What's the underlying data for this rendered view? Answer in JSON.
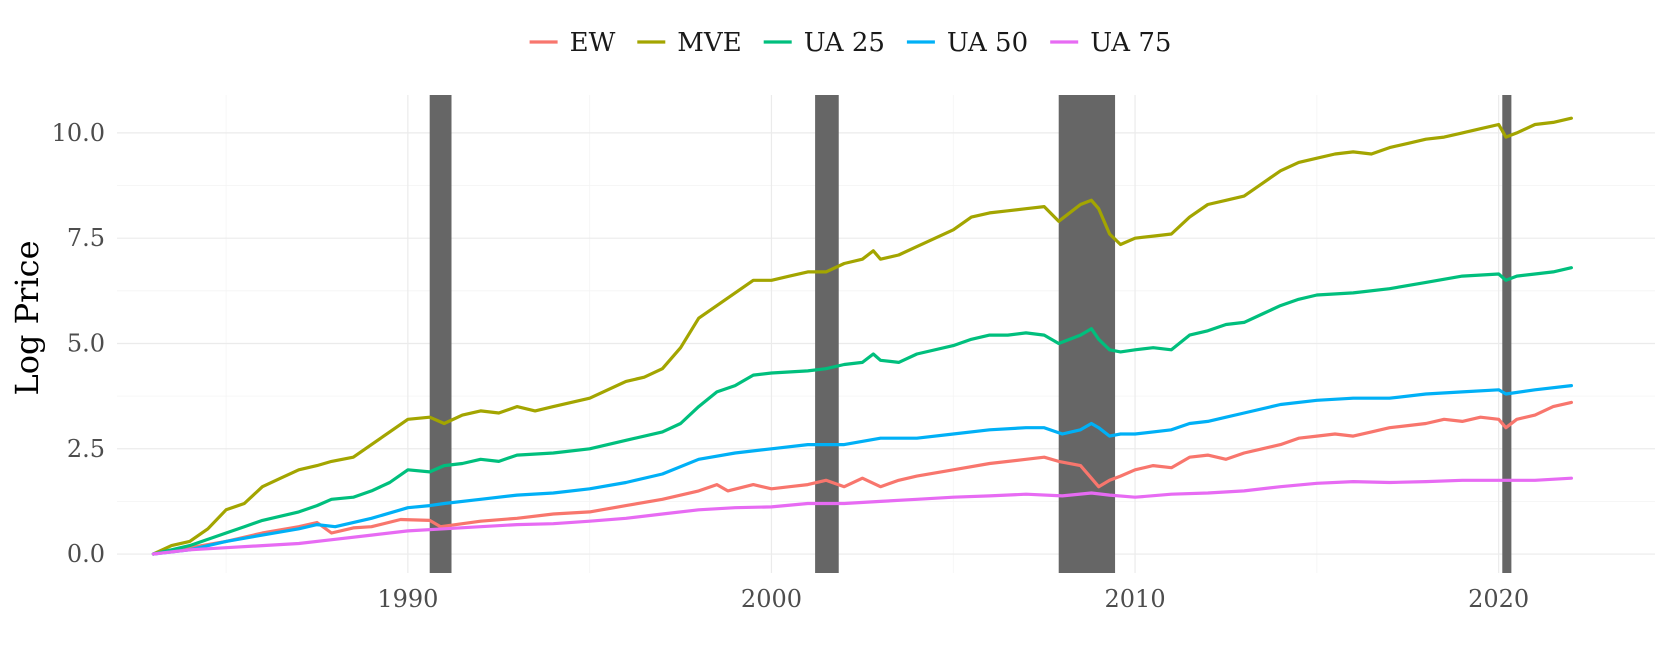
{
  "chart_data": {
    "type": "line",
    "title": "",
    "xlabel": "",
    "ylabel": "Log Price",
    "xlim": [
      1982.0,
      2024.3
    ],
    "ylim": [
      -0.45,
      10.9
    ],
    "x_ticks": [
      1990,
      2000,
      2010,
      2020
    ],
    "x_tick_labels": [
      "1990",
      "2000",
      "2010",
      "2020"
    ],
    "x_minor_ticks": [
      1985,
      1995,
      2005,
      2015
    ],
    "y_ticks": [
      0,
      2.5,
      5,
      7.5,
      10
    ],
    "y_tick_labels": [
      "0.0",
      "2.5",
      "5.0",
      "7.5",
      "10.0"
    ],
    "y_minor_ticks": [
      1.25,
      3.75,
      6.25,
      8.75
    ],
    "grid": true,
    "legend_position": "top",
    "recessions": [
      {
        "start": 1990.6,
        "end": 1991.2
      },
      {
        "start": 2001.2,
        "end": 2001.85
      },
      {
        "start": 2007.9,
        "end": 2009.45
      },
      {
        "start": 2020.1,
        "end": 2020.35
      }
    ],
    "series": [
      {
        "name": "EW",
        "color": "#F8766D",
        "x": [
          1983.0,
          1984.0,
          1985.0,
          1986.0,
          1987.0,
          1987.5,
          1987.9,
          1988.5,
          1989.0,
          1989.8,
          1990.6,
          1990.9,
          1991.5,
          1992.0,
          1993.0,
          1994.0,
          1995.0,
          1996.0,
          1997.0,
          1998.0,
          1998.5,
          1998.8,
          1999.5,
          2000.0,
          2000.5,
          2001.0,
          2001.5,
          2002.0,
          2002.5,
          2003.0,
          2003.5,
          2004.0,
          2005.0,
          2006.0,
          2007.0,
          2007.5,
          2007.9,
          2008.5,
          2008.8,
          2009.0,
          2009.3,
          2009.6,
          2010.0,
          2010.5,
          2011.0,
          2011.5,
          2012.0,
          2012.5,
          2013.0,
          2013.5,
          2014.0,
          2014.5,
          2015.0,
          2015.5,
          2016.0,
          2016.5,
          2017.0,
          2017.5,
          2018.0,
          2018.5,
          2019.0,
          2019.5,
          2020.0,
          2020.2,
          2020.5,
          2021.0,
          2021.5,
          2022.0
        ],
        "y": [
          0.0,
          0.15,
          0.3,
          0.5,
          0.65,
          0.75,
          0.5,
          0.62,
          0.65,
          0.82,
          0.8,
          0.65,
          0.72,
          0.78,
          0.85,
          0.95,
          1.0,
          1.15,
          1.3,
          1.5,
          1.65,
          1.5,
          1.65,
          1.55,
          1.6,
          1.65,
          1.75,
          1.6,
          1.8,
          1.6,
          1.75,
          1.85,
          2.0,
          2.15,
          2.25,
          2.3,
          2.2,
          2.1,
          1.8,
          1.6,
          1.75,
          1.85,
          2.0,
          2.1,
          2.05,
          2.3,
          2.35,
          2.25,
          2.4,
          2.5,
          2.6,
          2.75,
          2.8,
          2.85,
          2.8,
          2.9,
          3.0,
          3.05,
          3.1,
          3.2,
          3.15,
          3.25,
          3.2,
          3.0,
          3.2,
          3.3,
          3.5,
          3.6
        ]
      },
      {
        "name": "MVE",
        "color": "#A3A500",
        "x": [
          1983.0,
          1983.5,
          1984.0,
          1984.5,
          1985.0,
          1985.5,
          1986.0,
          1986.5,
          1987.0,
          1987.5,
          1987.9,
          1988.5,
          1989.0,
          1989.5,
          1990.0,
          1990.6,
          1991.0,
          1991.5,
          1992.0,
          1992.5,
          1993.0,
          1993.5,
          1994.0,
          1995.0,
          1996.0,
          1996.5,
          1997.0,
          1997.5,
          1998.0,
          1998.5,
          1999.0,
          1999.5,
          2000.0,
          2000.5,
          2001.0,
          2001.5,
          2002.0,
          2002.5,
          2002.8,
          2003.0,
          2003.5,
          2004.0,
          2005.0,
          2005.5,
          2006.0,
          2006.5,
          2007.0,
          2007.5,
          2007.9,
          2008.5,
          2008.8,
          2009.0,
          2009.3,
          2009.6,
          2010.0,
          2010.5,
          2011.0,
          2011.5,
          2012.0,
          2012.5,
          2013.0,
          2013.5,
          2014.0,
          2014.5,
          2015.0,
          2015.5,
          2016.0,
          2016.5,
          2017.0,
          2017.5,
          2018.0,
          2018.5,
          2019.0,
          2019.5,
          2020.0,
          2020.2,
          2020.5,
          2021.0,
          2021.5,
          2022.0
        ],
        "y": [
          0.0,
          0.2,
          0.3,
          0.6,
          1.05,
          1.2,
          1.6,
          1.8,
          2.0,
          2.1,
          2.2,
          2.3,
          2.6,
          2.9,
          3.2,
          3.25,
          3.1,
          3.3,
          3.4,
          3.35,
          3.5,
          3.4,
          3.5,
          3.7,
          4.1,
          4.2,
          4.4,
          4.9,
          5.6,
          5.9,
          6.2,
          6.5,
          6.5,
          6.6,
          6.7,
          6.7,
          6.9,
          7.0,
          7.2,
          7.0,
          7.1,
          7.3,
          7.7,
          8.0,
          8.1,
          8.15,
          8.2,
          8.25,
          7.9,
          8.3,
          8.4,
          8.2,
          7.6,
          7.35,
          7.5,
          7.55,
          7.6,
          8.0,
          8.3,
          8.4,
          8.5,
          8.8,
          9.1,
          9.3,
          9.4,
          9.5,
          9.55,
          9.5,
          9.65,
          9.75,
          9.85,
          9.9,
          10.0,
          10.1,
          10.2,
          9.9,
          10.0,
          10.2,
          10.25,
          10.35
        ]
      },
      {
        "name": "UA 25",
        "color": "#00BF7D",
        "x": [
          1983.0,
          1984.0,
          1985.0,
          1985.5,
          1986.0,
          1987.0,
          1987.5,
          1987.9,
          1988.5,
          1989.0,
          1989.5,
          1990.0,
          1990.6,
          1991.0,
          1991.5,
          1992.0,
          1992.5,
          1993.0,
          1994.0,
          1995.0,
          1996.0,
          1997.0,
          1997.5,
          1998.0,
          1998.5,
          1999.0,
          1999.5,
          2000.0,
          2001.0,
          2001.5,
          2002.0,
          2002.5,
          2002.8,
          2003.0,
          2003.5,
          2004.0,
          2005.0,
          2005.5,
          2006.0,
          2006.5,
          2007.0,
          2007.5,
          2007.9,
          2008.5,
          2008.8,
          2009.0,
          2009.3,
          2009.6,
          2010.0,
          2010.5,
          2011.0,
          2011.5,
          2012.0,
          2012.5,
          2013.0,
          2013.5,
          2014.0,
          2014.5,
          2015.0,
          2016.0,
          2017.0,
          2018.0,
          2019.0,
          2020.0,
          2020.2,
          2020.5,
          2021.0,
          2021.5,
          2022.0
        ],
        "y": [
          0.0,
          0.2,
          0.5,
          0.65,
          0.8,
          1.0,
          1.15,
          1.3,
          1.35,
          1.5,
          1.7,
          2.0,
          1.95,
          2.1,
          2.15,
          2.25,
          2.2,
          2.35,
          2.4,
          2.5,
          2.7,
          2.9,
          3.1,
          3.5,
          3.85,
          4.0,
          4.25,
          4.3,
          4.35,
          4.4,
          4.5,
          4.55,
          4.75,
          4.6,
          4.55,
          4.75,
          4.95,
          5.1,
          5.2,
          5.2,
          5.25,
          5.2,
          5.0,
          5.2,
          5.35,
          5.1,
          4.85,
          4.8,
          4.85,
          4.9,
          4.85,
          5.2,
          5.3,
          5.45,
          5.5,
          5.7,
          5.9,
          6.05,
          6.15,
          6.2,
          6.3,
          6.45,
          6.6,
          6.65,
          6.5,
          6.6,
          6.65,
          6.7,
          6.8
        ]
      },
      {
        "name": "UA 50",
        "color": "#00B0F6",
        "x": [
          1983.0,
          1984.0,
          1985.0,
          1986.0,
          1987.0,
          1987.5,
          1988.0,
          1989.0,
          1990.0,
          1990.6,
          1991.0,
          1992.0,
          1993.0,
          1994.0,
          1995.0,
          1996.0,
          1997.0,
          1998.0,
          1999.0,
          2000.0,
          2001.0,
          2001.5,
          2002.0,
          2003.0,
          2004.0,
          2005.0,
          2006.0,
          2007.0,
          2007.5,
          2008.0,
          2008.5,
          2008.8,
          2009.0,
          2009.3,
          2009.6,
          2010.0,
          2011.0,
          2011.5,
          2012.0,
          2012.5,
          2013.0,
          2014.0,
          2015.0,
          2016.0,
          2017.0,
          2018.0,
          2019.0,
          2020.0,
          2020.2,
          2021.0,
          2022.0
        ],
        "y": [
          0.0,
          0.1,
          0.3,
          0.45,
          0.6,
          0.7,
          0.65,
          0.85,
          1.1,
          1.15,
          1.2,
          1.3,
          1.4,
          1.45,
          1.55,
          1.7,
          1.9,
          2.25,
          2.4,
          2.5,
          2.6,
          2.6,
          2.6,
          2.75,
          2.75,
          2.85,
          2.95,
          3.0,
          3.0,
          2.85,
          2.95,
          3.1,
          3.0,
          2.8,
          2.85,
          2.85,
          2.95,
          3.1,
          3.15,
          3.25,
          3.35,
          3.55,
          3.65,
          3.7,
          3.7,
          3.8,
          3.85,
          3.9,
          3.8,
          3.9,
          4.0
        ]
      },
      {
        "name": "UA 75",
        "color": "#E76BF3",
        "x": [
          1983.0,
          1984.0,
          1985.0,
          1986.0,
          1987.0,
          1988.0,
          1989.0,
          1990.0,
          1991.0,
          1992.0,
          1993.0,
          1994.0,
          1995.0,
          1996.0,
          1997.0,
          1998.0,
          1999.0,
          2000.0,
          2001.0,
          2002.0,
          2003.0,
          2004.0,
          2005.0,
          2006.0,
          2007.0,
          2008.0,
          2008.8,
          2009.3,
          2010.0,
          2011.0,
          2012.0,
          2013.0,
          2014.0,
          2015.0,
          2016.0,
          2017.0,
          2018.0,
          2019.0,
          2020.0,
          2021.0,
          2022.0
        ],
        "y": [
          0.0,
          0.1,
          0.15,
          0.2,
          0.25,
          0.35,
          0.45,
          0.55,
          0.6,
          0.65,
          0.7,
          0.72,
          0.78,
          0.85,
          0.95,
          1.05,
          1.1,
          1.12,
          1.2,
          1.2,
          1.25,
          1.3,
          1.35,
          1.38,
          1.42,
          1.38,
          1.45,
          1.4,
          1.35,
          1.42,
          1.45,
          1.5,
          1.6,
          1.68,
          1.72,
          1.7,
          1.72,
          1.75,
          1.75,
          1.75,
          1.8
        ]
      }
    ]
  }
}
